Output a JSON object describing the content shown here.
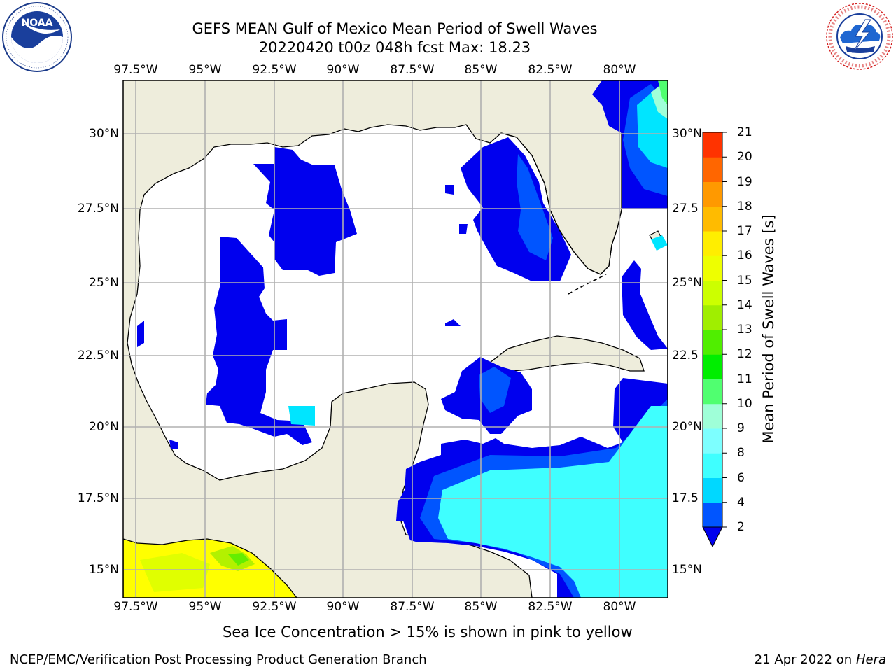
{
  "title": {
    "line1": "GEFS MEAN Gulf of Mexico Mean Period of Swell Waves",
    "line2": "20220420 t00z 048h fcst   Max: 18.23"
  },
  "logos": {
    "noaa": {
      "text": "NOAA",
      "ring_text": "NATIONAL OCEANIC AND ATMOSPHERIC ADMINISTRATION · U.S. DEPARTMENT OF COMMERCE"
    },
    "nws": {
      "ring_text": "NATIONAL WEATHER SERVICE"
    }
  },
  "map": {
    "lon_ticks": [
      "97.5°W",
      "95°W",
      "92.5°W",
      "90°W",
      "87.5°W",
      "85°W",
      "82.5°W",
      "80°W"
    ],
    "lat_ticks_left": [
      "30°N",
      "27.5°N",
      "25°N",
      "22.5°N",
      "20°N",
      "17.5°N",
      "15°N"
    ],
    "lat_ticks_right": [
      "30°N",
      "27.5",
      "25°N",
      "22.5",
      "20°N",
      "17.5",
      "15°N"
    ],
    "colors": {
      "land": "#eeeddc",
      "ocean": "#ffffff",
      "grid": "#b0b0b0"
    }
  },
  "colorbar": {
    "label": "Mean Period of Swell Waves [s]",
    "ticks": [
      "2",
      "4",
      "6",
      "8",
      "9",
      "10",
      "11",
      "12",
      "13",
      "14",
      "15",
      "16",
      "17",
      "18",
      "19",
      "20",
      "21"
    ],
    "colors": [
      "#0055ff",
      "#00d8ff",
      "#3fffff",
      "#7dffff",
      "#9fffd8",
      "#50ff70",
      "#00ee00",
      "#50ee00",
      "#a0ee00",
      "#ccff00",
      "#eeff00",
      "#ffee00",
      "#ffbb00",
      "#ff9900",
      "#ff6600",
      "#ff3300",
      "#ff0000"
    ],
    "extend_color": "#0000ee"
  },
  "footer": {
    "note": "Sea Ice Concentration > 15% is shown in pink to yellow",
    "credit_left": "NCEP/EMC/Verification Post Processing Product Generation Branch",
    "credit_date": "21 Apr 2022 on ",
    "credit_host": "Hera"
  }
}
